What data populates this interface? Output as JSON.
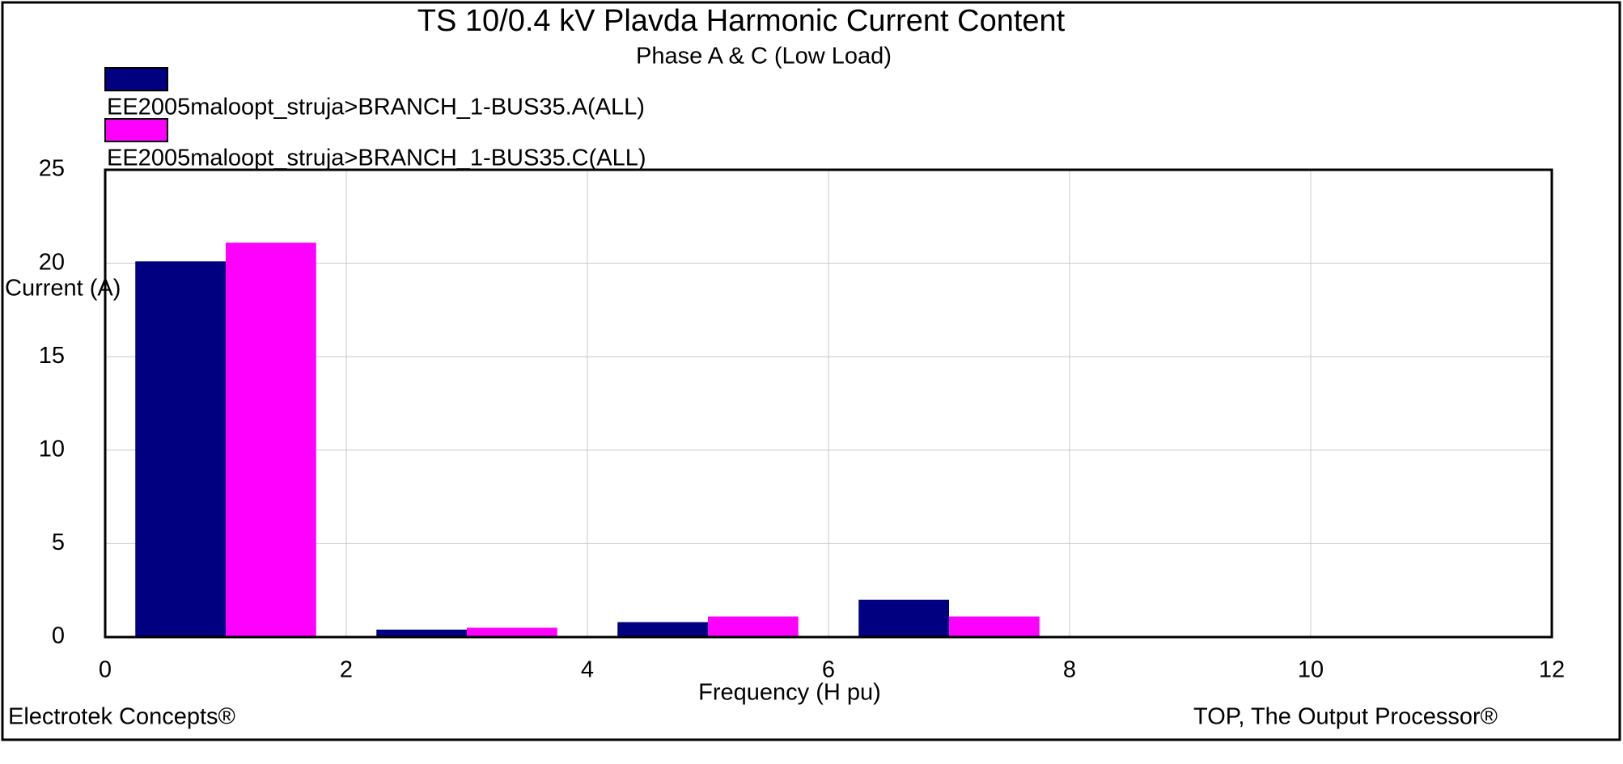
{
  "chart_data": {
    "type": "bar",
    "title": "TS 10/0.4 kV Plavda Harmonic Current Content",
    "subtitle": "Phase A & C (Low Load)",
    "x_label": "Frequency (H pu)",
    "y_label": "Current (A)",
    "footer_left": "Electrotek Concepts®",
    "footer_right": "TOP, The Output Processor®",
    "x": [
      1,
      3,
      5,
      7
    ],
    "series": [
      {
        "name": "EE2005maloopt_struja>BRANCH_1-BUS35.A(ALL)",
        "color": "#000080",
        "values": [
          20.1,
          0.4,
          0.8,
          2.0
        ]
      },
      {
        "name": "EE2005maloopt_struja>BRANCH_1-BUS35.C(ALL)",
        "color": "#ff00ff",
        "values": [
          21.1,
          0.5,
          1.1,
          1.1
        ]
      }
    ],
    "xlim": [
      0,
      12
    ],
    "xticks": [
      0,
      2,
      4,
      6,
      8,
      10,
      12
    ],
    "ylim": [
      0,
      25
    ],
    "yticks": [
      0,
      5,
      10,
      15,
      20,
      25
    ],
    "grid": true
  }
}
